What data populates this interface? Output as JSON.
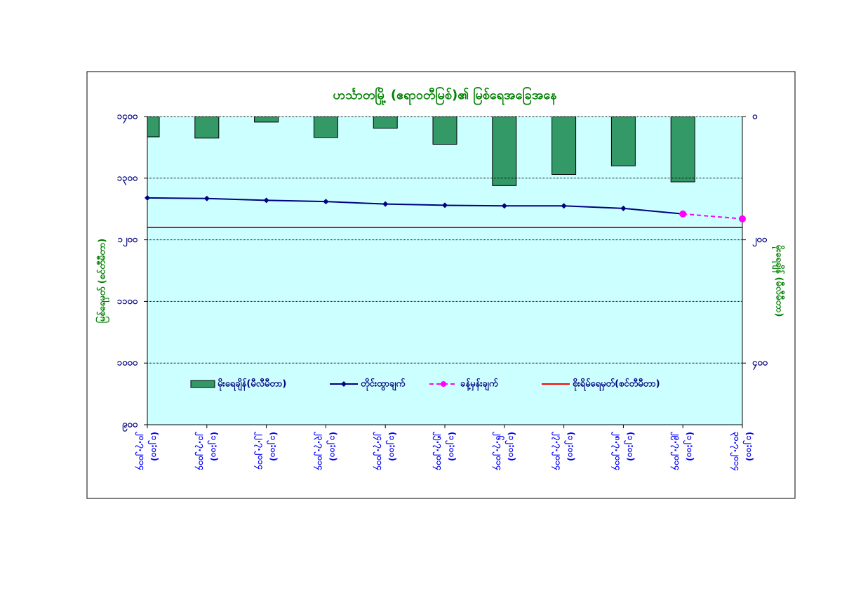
{
  "chart_data": {
    "type": "combo",
    "title": "ဟင်္သာတမြို့ (ဧရာဝတီမြစ်)၏ မြစ်ရေအခြေအနေ",
    "ylabel": "မြစ်ရေမှတ် (စင်တီမီတာ)",
    "y2label": "မိုးရေချိန် (မီလီမီတာ)",
    "categories": [
      [
        "၂၀.၇.၂၀၁၄",
        "(၁၂:၀၀)"
      ],
      [
        "၂၁.၇.၂၀၁၄",
        "(၁၂:၀၀)"
      ],
      [
        "၂၂.၇.၂၀၁၄",
        "(၁၂:၀၀)"
      ],
      [
        "၂၃.၇.၂၀၁၄",
        "(၁၂:၀၀)"
      ],
      [
        "၂၄.၇.၂၀၁၄",
        "(၁၂:၀၀)"
      ],
      [
        "၂၅.၇.၂၀၁၄",
        "(၁၂:၀၀)"
      ],
      [
        "၂၆.၇.၂၀၁၄",
        "(၁၂:၀၀)"
      ],
      [
        "၂၇.၇.၂၀၁၄",
        "(၁၂:၀၀)"
      ],
      [
        "၂၈.၇.၂၀၁၄",
        "(၁၂:၀၀)"
      ],
      [
        "၂၉.၇.၂၀၁၄",
        "(၁၂:၀၀)"
      ],
      [
        "၃၀.၇.၂၀၁၄",
        "(၁၂:၀၀)"
      ]
    ],
    "series": [
      {
        "name": "မိုးရေချိန်(မီလီမီတာ)",
        "type": "bar",
        "axis": "y2",
        "color": "#339966",
        "values": [
          33,
          35,
          9,
          34,
          19,
          45,
          112,
          94,
          80,
          106,
          null
        ]
      },
      {
        "name": "တိုင်းထွာချက်",
        "type": "line",
        "color": "#000080",
        "dashed": false,
        "values": [
          1268,
          1267,
          1264,
          1262,
          1258,
          1256,
          1255,
          1255,
          1251,
          1242,
          null
        ]
      },
      {
        "name": "ခန့်မှန်းချက်",
        "type": "line",
        "color": "#ff00ff",
        "dashed": true,
        "values": [
          null,
          null,
          null,
          null,
          null,
          null,
          null,
          null,
          null,
          1242,
          1234
        ]
      }
    ],
    "reference_lines": [
      {
        "name": "စိုးရိမ်ရေမှတ်(စင်တီမီတာ)",
        "color": "#ff0000",
        "value": 1220
      }
    ],
    "ylim": [
      900,
      1400
    ],
    "yticks": [
      {
        "value": 900,
        "label": "၉၀၀"
      },
      {
        "value": 1000,
        "label": "၁၀၀၀"
      },
      {
        "value": 1100,
        "label": "၁၁၀၀"
      },
      {
        "value": 1200,
        "label": "၁၂၀၀"
      },
      {
        "value": 1300,
        "label": "၁၃၀၀"
      },
      {
        "value": 1400,
        "label": "၁၄၀၀"
      }
    ],
    "y2lim": [
      500,
      0
    ],
    "y2ticks": [
      {
        "value": 0,
        "label": "၀"
      },
      {
        "value": 200,
        "label": "၂၀၀"
      },
      {
        "value": 400,
        "label": "၄၀၀"
      }
    ],
    "grid": true,
    "background": "#ccffff"
  }
}
